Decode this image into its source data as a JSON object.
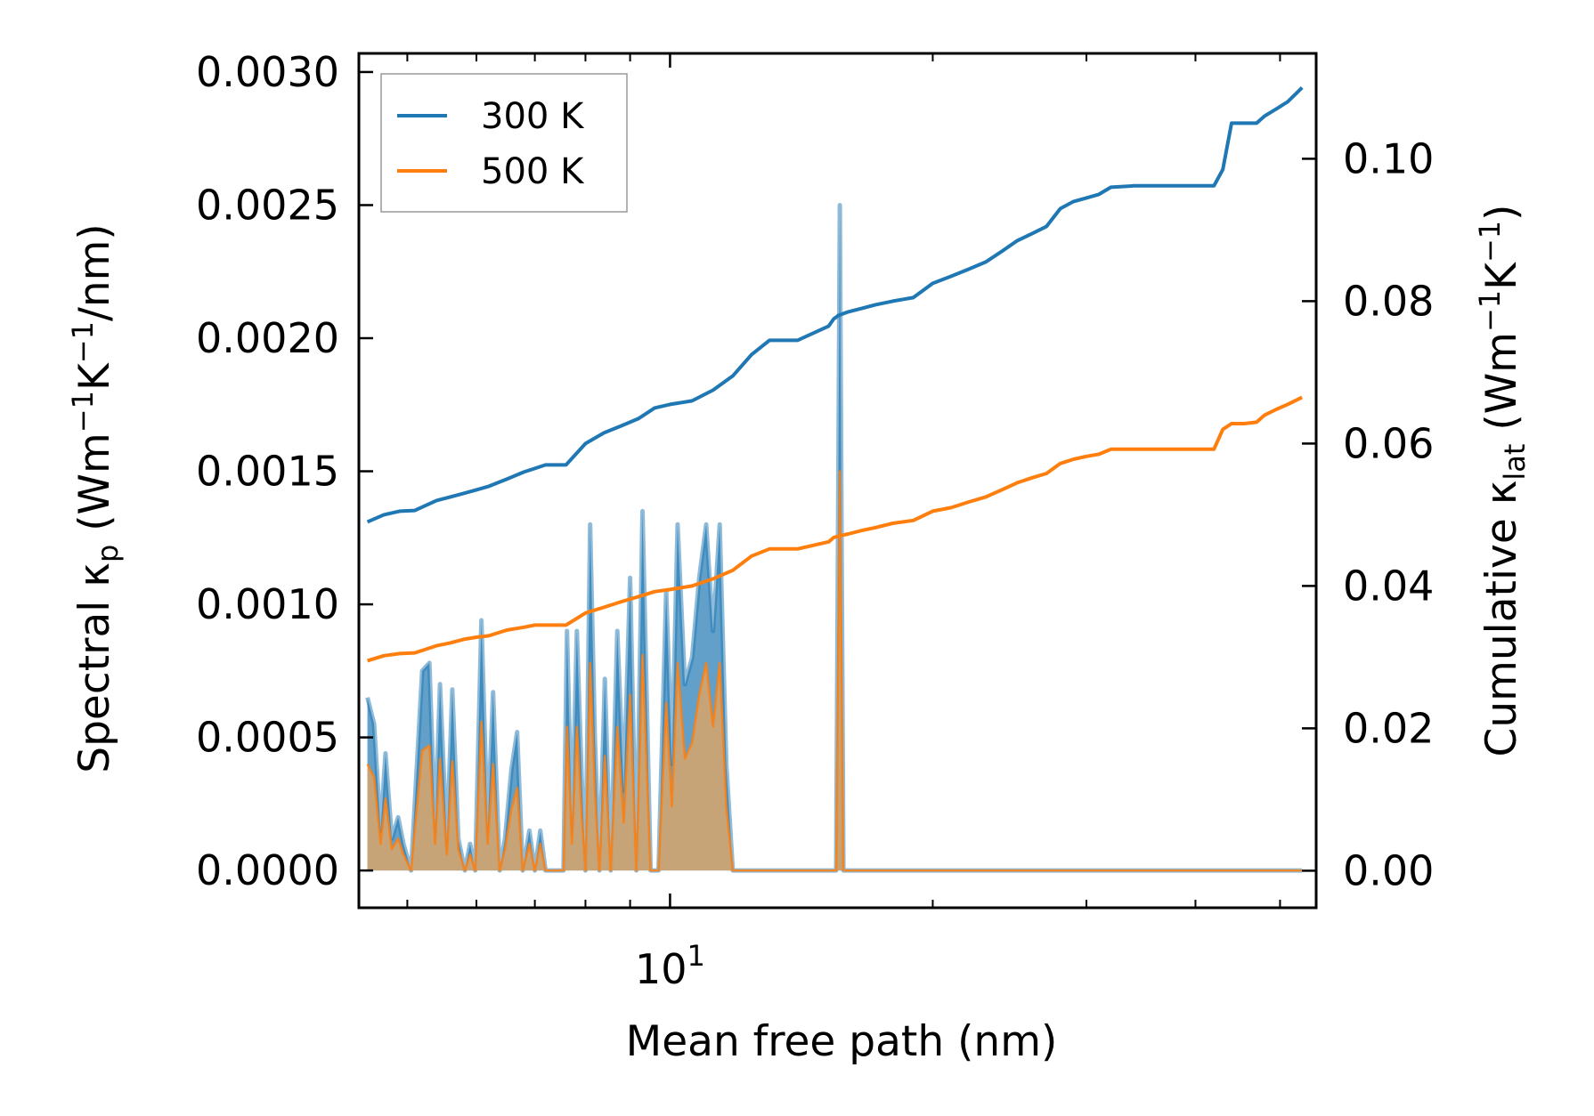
{
  "chart_data": {
    "type": "line",
    "title": "",
    "xlabel": "Mean free path (nm)",
    "xscale": "log",
    "xlim": [
      4.4,
      55
    ],
    "x_tick_labels": [
      {
        "base": "10",
        "exp": "1"
      }
    ],
    "ylabel_left": {
      "main": "Spectral κ",
      "sub": "p",
      "unit_open": " (Wm",
      "unit_exp1": "−1",
      "unit_mid": "K",
      "unit_exp2": "−1",
      "unit_close": "/nm)"
    },
    "ylabel_right": {
      "main": "Cumulative κ",
      "sub": "lat",
      "unit_open": " (Wm",
      "unit_exp1": "−1",
      "unit_mid": "K",
      "unit_exp2": "−1",
      "unit_close": ")"
    },
    "ylim_left": [
      -0.00014,
      0.00307
    ],
    "yticks_left": [
      0.0,
      0.0005,
      0.001,
      0.0015,
      0.002,
      0.0025,
      0.003
    ],
    "ytick_labels_left": [
      "0.0000",
      "0.0005",
      "0.0010",
      "0.0015",
      "0.0020",
      "0.0025",
      "0.0030"
    ],
    "ylim_right": [
      -0.0052,
      0.1148
    ],
    "yticks_right": [
      0.0,
      0.02,
      0.04,
      0.06,
      0.08,
      0.1
    ],
    "ytick_labels_right": [
      "0.00",
      "0.02",
      "0.04",
      "0.06",
      "0.08",
      "0.10"
    ],
    "legend": {
      "position": "top-left",
      "entries": [
        "300 K",
        "500 K"
      ]
    },
    "colors": {
      "series_300K": "#1f77b4",
      "series_500K": "#ff7f0e",
      "fill_300K": "#1f77b4",
      "fill_500K": "#d9a569"
    },
    "spectral": {
      "x": [
        4.5,
        4.58,
        4.66,
        4.72,
        4.8,
        4.88,
        4.95,
        5.05,
        5.2,
        5.3,
        5.38,
        5.45,
        5.55,
        5.63,
        5.72,
        5.82,
        5.9,
        5.98,
        6.08,
        6.18,
        6.27,
        6.38,
        6.47,
        6.58,
        6.68,
        6.78,
        6.9,
        7.0,
        7.1,
        7.2,
        7.4,
        7.55,
        7.62,
        7.72,
        7.82,
        7.92,
        8.0,
        8.1,
        8.2,
        8.3,
        8.42,
        8.55,
        8.7,
        8.85,
        9.0,
        9.15,
        9.3,
        9.5,
        9.7,
        9.9,
        10.05,
        10.2,
        10.4,
        10.6,
        10.8,
        11.0,
        11.2,
        11.4,
        11.6,
        11.8,
        12.0,
        12.2,
        12.4,
        12.6,
        12.8,
        13.0,
        13.2,
        13.4,
        13.6,
        13.8,
        14.0,
        15.5,
        15.65,
        15.8,
        16.0,
        16.2,
        16.5,
        16.8,
        17.0,
        17.2,
        17.5,
        17.8,
        18.0,
        18.3,
        18.6,
        18.9,
        19.2,
        19.5,
        19.8,
        20.2,
        22.5,
        22.9,
        23.3,
        23.7,
        24.1,
        24.5,
        24.9,
        25.3,
        25.7,
        26.1,
        26.5,
        26.9,
        27.3,
        27.7,
        28.1,
        28.5,
        28.9,
        29.3,
        29.7,
        30.1,
        30.5,
        30.9,
        31.4,
        31.9,
        32.4,
        33.0,
        34.0,
        36.0,
        38.0,
        40.0,
        42.0,
        42.5,
        43.0,
        43.5,
        44.0,
        44.5,
        45.0,
        46.5,
        47.0,
        47.5,
        48.0,
        48.8,
        49.5,
        50.0,
        50.5,
        51.0,
        51.5,
        52.0,
        53.0
      ],
      "s300": [
        0.00065,
        0.00055,
        0.00015,
        0.00044,
        0.00012,
        0.0002,
        0.0001,
        0.0,
        0.00075,
        0.00078,
        0.00015,
        0.0007,
        0.0001,
        0.00068,
        0.00012,
        0.0,
        0.0001,
        0.0,
        0.00094,
        0.00015,
        0.00067,
        0.0,
        0.00012,
        0.00038,
        0.00052,
        0.0,
        0.00015,
        0.0,
        0.00015,
        0.0,
        0.0,
        0.0,
        0.0009,
        0.00015,
        0.0009,
        0.00035,
        0.0,
        0.0013,
        0.0005,
        0.0,
        0.00072,
        0.0,
        0.0009,
        0.0003,
        0.0011,
        0.0,
        0.00135,
        0.0,
        0.0,
        0.00105,
        0.0004,
        0.0013,
        0.0007,
        0.0008,
        0.0011,
        0.0013,
        0.0009,
        0.0013,
        0.0004,
        0.0,
        0.0,
        0.0,
        0.0,
        0.0,
        0.0,
        0.0,
        0.0,
        0.0,
        0.0,
        0.0,
        0.0,
        0.0,
        0.0025,
        0.0,
        0.0,
        0.0,
        0.0,
        0.0,
        0.0,
        0.0,
        0.0,
        0.0,
        0.0,
        0.0,
        0.0,
        0.0,
        0.0,
        0.0,
        0.0,
        0.0,
        0.0,
        0.0,
        0.0,
        0.0,
        0.0,
        0.0,
        0.0,
        0.0,
        0.0,
        0.0,
        0.0,
        0.0,
        0.0,
        0.0,
        0.0,
        0.0,
        0.0,
        0.0,
        0.0,
        0.0,
        0.0,
        0.0,
        0.0,
        0.0,
        0.0,
        0.0,
        0.0,
        0.0,
        0.0,
        0.0,
        0.0,
        0.0,
        0.0,
        0.0,
        0.0,
        0.0,
        0.0,
        0.0,
        0.0,
        0.0,
        0.0,
        0.0,
        0.0,
        0.0,
        0.0,
        0.0,
        0.0,
        0.0,
        0.0
      ],
      "s500": [
        0.0004,
        0.00035,
        0.0001,
        0.00027,
        8e-05,
        0.00012,
        6e-05,
        0.0,
        0.00045,
        0.00047,
        0.0001,
        0.00042,
        6e-05,
        0.00041,
        8e-05,
        0.0,
        6e-05,
        0.0,
        0.00056,
        0.0001,
        0.0004,
        0.0,
        8e-05,
        0.00023,
        0.00031,
        0.0,
        0.0001,
        0.0,
        0.0001,
        0.0,
        0.0,
        0.0,
        0.00054,
        0.0001,
        0.00054,
        0.00021,
        0.0,
        0.00078,
        0.0003,
        0.0,
        0.00043,
        0.0,
        0.00054,
        0.00018,
        0.00066,
        0.0,
        0.00081,
        0.0,
        0.0,
        0.00063,
        0.00024,
        0.00078,
        0.00042,
        0.00048,
        0.00066,
        0.00078,
        0.00054,
        0.00078,
        0.00024,
        0.0,
        0.0,
        0.0,
        0.0,
        0.0,
        0.0,
        0.0,
        0.0,
        0.0,
        0.0,
        0.0,
        0.0,
        0.0,
        0.0015,
        0.0,
        0.0,
        0.0,
        0.0,
        0.0,
        0.0,
        0.0,
        0.0,
        0.0,
        0.0,
        0.0,
        0.0,
        0.0,
        0.0,
        0.0,
        0.0,
        0.0,
        0.0,
        0.0,
        0.0,
        0.0,
        0.0,
        0.0,
        0.0,
        0.0,
        0.0,
        0.0,
        0.0,
        0.0,
        0.0,
        0.0,
        0.0,
        0.0,
        0.0,
        0.0,
        0.0,
        0.0,
        0.0,
        0.0,
        0.0,
        0.0,
        0.0,
        0.0,
        0.0,
        0.0,
        0.0,
        0.0,
        0.0,
        0.0,
        0.0,
        0.0,
        0.0,
        0.0,
        0.0,
        0.0,
        0.0,
        0.0,
        0.0,
        0.0,
        0.0,
        0.0,
        0.0,
        0.0,
        0.0,
        0.0,
        0.0,
        0.0,
        0.0
      ]
    },
    "series": [
      {
        "name": "300 K",
        "x": [
          4.5,
          4.7,
          4.9,
          5.1,
          5.4,
          5.6,
          5.8,
          6.0,
          6.2,
          6.5,
          6.8,
          7.0,
          7.2,
          7.6,
          8.0,
          8.4,
          8.8,
          9.2,
          9.6,
          10.0,
          10.6,
          11.2,
          11.8,
          12.4,
          13.0,
          13.5,
          14.0,
          15.2,
          15.4,
          15.6,
          16.0,
          16.6,
          17.2,
          18.0,
          19.0,
          20.0,
          21.0,
          22.0,
          23.0,
          24.0,
          25.0,
          26.0,
          27.0,
          28.0,
          29.0,
          30.0,
          31.0,
          32.0,
          34.0,
          38.0,
          42.0,
          43.0,
          44.0,
          45.5,
          47.0,
          48.0,
          49.5,
          51.0,
          52.0,
          53.0
        ],
        "y": [
          0.049,
          0.05,
          0.0505,
          0.0506,
          0.052,
          0.0525,
          0.053,
          0.0535,
          0.054,
          0.055,
          0.056,
          0.0565,
          0.057,
          0.057,
          0.06,
          0.0615,
          0.0625,
          0.0635,
          0.065,
          0.0655,
          0.066,
          0.0675,
          0.0695,
          0.0725,
          0.0745,
          0.0745,
          0.0745,
          0.0765,
          0.0775,
          0.078,
          0.0785,
          0.079,
          0.0795,
          0.08,
          0.0805,
          0.0825,
          0.0835,
          0.0845,
          0.0855,
          0.087,
          0.0885,
          0.0895,
          0.0905,
          0.093,
          0.094,
          0.0945,
          0.095,
          0.096,
          0.0962,
          0.0962,
          0.0962,
          0.0985,
          0.105,
          0.105,
          0.105,
          0.106,
          0.107,
          0.108,
          0.109,
          0.11
        ]
      },
      {
        "name": "500 K",
        "x": [
          4.5,
          4.7,
          4.9,
          5.1,
          5.4,
          5.6,
          5.8,
          6.0,
          6.2,
          6.5,
          6.8,
          7.0,
          7.2,
          7.6,
          8.0,
          8.4,
          8.8,
          9.2,
          9.6,
          10.0,
          10.6,
          11.2,
          11.8,
          12.4,
          13.0,
          13.5,
          14.0,
          15.2,
          15.4,
          15.6,
          16.0,
          16.6,
          17.2,
          18.0,
          19.0,
          20.0,
          21.0,
          22.0,
          23.0,
          24.0,
          25.0,
          26.0,
          27.0,
          28.0,
          29.0,
          30.0,
          31.0,
          32.0,
          34.0,
          38.0,
          42.0,
          43.0,
          44.0,
          45.5,
          47.0,
          48.0,
          49.5,
          51.0,
          52.0,
          53.0
        ],
        "y": [
          0.0295,
          0.0302,
          0.0305,
          0.0306,
          0.0316,
          0.032,
          0.0325,
          0.0328,
          0.033,
          0.0338,
          0.0342,
          0.0345,
          0.0345,
          0.0345,
          0.0362,
          0.037,
          0.0378,
          0.0385,
          0.0392,
          0.0395,
          0.04,
          0.041,
          0.0422,
          0.0442,
          0.0452,
          0.0452,
          0.0452,
          0.0462,
          0.0468,
          0.047,
          0.0473,
          0.0478,
          0.0482,
          0.0488,
          0.0492,
          0.0505,
          0.051,
          0.0518,
          0.0525,
          0.0535,
          0.0545,
          0.0552,
          0.0558,
          0.0572,
          0.0578,
          0.0582,
          0.0585,
          0.0592,
          0.0592,
          0.0592,
          0.0592,
          0.062,
          0.0628,
          0.0628,
          0.063,
          0.064,
          0.0648,
          0.0655,
          0.066,
          0.0665
        ]
      }
    ]
  }
}
